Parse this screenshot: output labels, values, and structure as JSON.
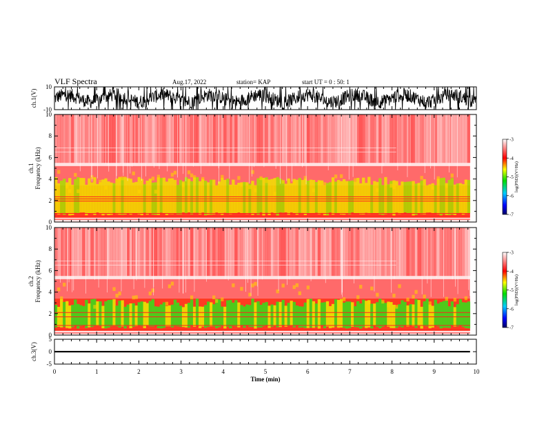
{
  "header": {
    "title": "VLF Spectra",
    "date": "Aug.17, 2022",
    "station": "station= KAP",
    "start_ut": "start  UT =  0 : 50: 1"
  },
  "colors": {
    "waveform": "#000000",
    "axes": "#000000",
    "background": "#ffffff"
  },
  "chart_data": [
    {
      "type": "line",
      "ylabel": "ch.1(V)",
      "ylim": [
        -10,
        10
      ],
      "y_ticks": [
        "10",
        "-10"
      ],
      "xlim": [
        0,
        10
      ],
      "note": "dense waveform"
    },
    {
      "type": "heatmap",
      "ylabel": "ch.1 Frequency (kHz)",
      "ylim": [
        0,
        10
      ],
      "y_ticks": [
        "0",
        "2",
        "4",
        "6",
        "8",
        "10"
      ],
      "xlim": [
        0,
        9.85
      ],
      "colorbar": {
        "label": "log(PSD)(V²/Hz)",
        "range": [
          -7,
          -3
        ],
        "ticks": [
          "-3",
          "-4",
          "-5",
          "-6",
          "-7"
        ]
      }
    },
    {
      "type": "heatmap",
      "ylabel": "ch.2 Frequency (kHz)",
      "ylim": [
        0,
        10
      ],
      "y_ticks": [
        "0",
        "2",
        "4",
        "6",
        "8",
        "10"
      ],
      "xlim": [
        0,
        9.85
      ],
      "colorbar": {
        "label": "log(PSD)(V²/Hz)",
        "range": [
          -7,
          -3
        ],
        "ticks": [
          "-3",
          "-4",
          "-5",
          "-6",
          "-7"
        ]
      }
    },
    {
      "type": "line",
      "ylabel": "ch.3(V)",
      "ylim": [
        -5,
        5
      ],
      "y_ticks": [
        "5",
        "0",
        "-5"
      ],
      "xlim": [
        0,
        10
      ],
      "xlabel": "Time (min)",
      "x_ticks": [
        "0",
        "1",
        "2",
        "3",
        "4",
        "5",
        "6",
        "7",
        "8",
        "9",
        "10"
      ]
    }
  ]
}
